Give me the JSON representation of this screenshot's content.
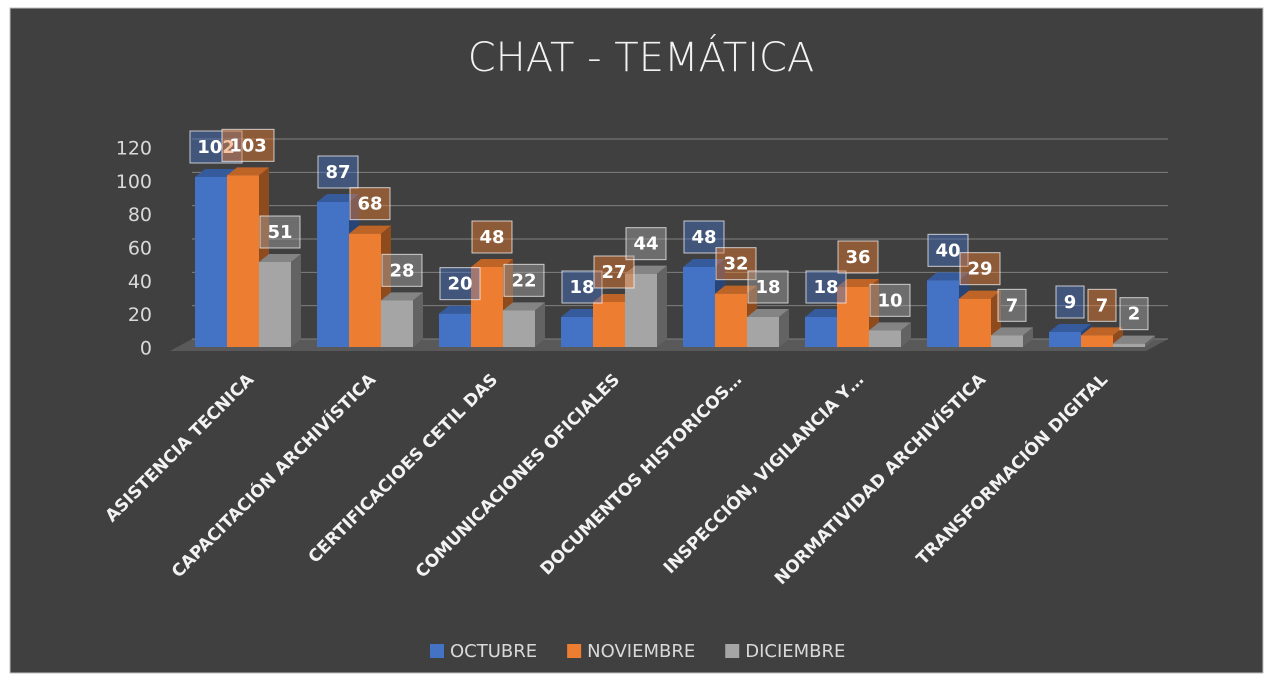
{
  "chart_data": {
    "type": "bar3d",
    "title": "CHAT - TEMÁTICA",
    "categories": [
      "ASISTENCIA TECNICA",
      "CAPACITACIÓN ARCHIVÍSTICA",
      "CERTIFICACIOES CETIL DAS",
      "COMUNICACIONES OFICIALES",
      "DOCUMENTOS HISTORICOS…",
      "INSPECCIÓN, VIGILANCIA Y…",
      "NORMATIVIDAD ARCHIVÍSTICA",
      "TRANSFORMACIÓN DIGITAL"
    ],
    "series": [
      {
        "name": "OCTUBRE",
        "color": "#4472c4",
        "values": [
          102,
          87,
          20,
          18,
          48,
          18,
          40,
          9
        ]
      },
      {
        "name": "NOVIEMBRE",
        "color": "#ed7d31",
        "values": [
          103,
          68,
          48,
          27,
          32,
          36,
          29,
          7
        ]
      },
      {
        "name": "DICIEMBRE",
        "color": "#a5a5a5",
        "values": [
          51,
          28,
          22,
          44,
          18,
          10,
          7,
          2
        ]
      }
    ],
    "ylim": [
      0,
      120
    ],
    "yticks": [
      0,
      20,
      40,
      60,
      80,
      100,
      120
    ],
    "grid": true,
    "legend": "bottom"
  }
}
